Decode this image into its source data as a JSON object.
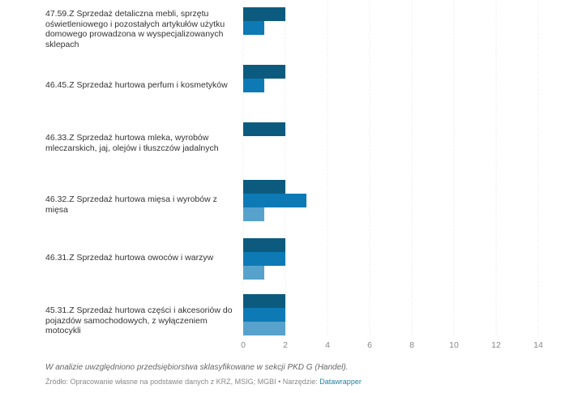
{
  "chart_data": {
    "type": "bar",
    "orientation": "horizontal",
    "categories": [
      "47.59.Z Sprzedaż detaliczna mebli, sprzętu oświetleniowego i pozostałych artykułów użytku domowego prowadzona w wyspecjalizowanych sklepach",
      "46.45.Z Sprzedaż hurtowa perfum i kosmetyków",
      "46.33.Z Sprzedaż hurtowa mleka, wyrobów mleczarskich, jaj, olejów i tłuszczów jadalnych",
      "46.32.Z Sprzedaż hurtowa mięsa i wyrobów z mięsa",
      "46.31.Z Sprzedaż hurtowa owoców i warzyw",
      "45.31.Z Sprzedaż hurtowa części i akcesoriów do pojazdów samochodowych, z wyłączeniem motocykli"
    ],
    "series": [
      {
        "color": "#0c5b7f",
        "values": [
          2,
          2,
          2,
          2,
          2,
          2
        ]
      },
      {
        "color": "#0d7ab5",
        "values": [
          1,
          1,
          null,
          3,
          2,
          2
        ]
      },
      {
        "color": "#57a2cc",
        "values": [
          null,
          null,
          null,
          1,
          1,
          2
        ]
      }
    ],
    "xlim": [
      0,
      14
    ],
    "xticks": [
      0,
      2,
      4,
      6,
      8,
      10,
      12,
      14
    ],
    "grid": true
  },
  "footnote": "W analizie uwzględniono przedsiębiorstwa sklasyfikowane w sekcji PKD G (Handel).",
  "source": {
    "text": "Źródło: Opracowanie własne na podstawie danych z KRZ, MSIG; MGBI • Narzędzie: ",
    "tool": "Datawrapper"
  },
  "colors": {
    "grid": "#e5e5e5",
    "tick": "#888888",
    "link": "#1d81a2"
  }
}
